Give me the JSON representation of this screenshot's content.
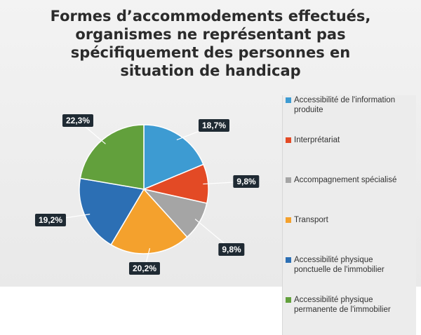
{
  "chart_data": {
    "type": "pie",
    "title_lines": [
      "Formes d’accommodements effectués,",
      "organismes ne représentant pas",
      "spécifiquement des personnes en",
      "situation de handicap"
    ],
    "slices": [
      {
        "label": "Accessibilité de l'information produite",
        "legend_lines": [
          "Accessibilité de l'information",
          "produite"
        ],
        "value": 18.7,
        "display": "18,7%",
        "color": "#3d9bd2"
      },
      {
        "label": "Interprétariat",
        "legend_lines": [
          "Interprétariat"
        ],
        "value": 9.8,
        "display": "9,8%",
        "color": "#e34a25"
      },
      {
        "label": "Accompagnement spécialisé",
        "legend_lines": [
          "Accompagnement spécialisé"
        ],
        "value": 9.8,
        "display": "9,8%",
        "color": "#a5a5a5"
      },
      {
        "label": "Transport",
        "legend_lines": [
          "Transport"
        ],
        "value": 20.2,
        "display": "20,2%",
        "color": "#f4a12d"
      },
      {
        "label": "Accessibilité physique ponctuelle de l'immobilier",
        "legend_lines": [
          "Accessibilité physique",
          "ponctuelle de l'immobilier"
        ],
        "value": 19.2,
        "display": "19,2%",
        "color": "#2c6fb4"
      },
      {
        "label": "Accessibilité physique permanente de l'immobilier",
        "legend_lines": [
          "Accessibilité physique",
          "permanente de l'immobilier"
        ],
        "value": 22.3,
        "display": "22,3%",
        "color": "#62a03c"
      }
    ],
    "legend_position": "right",
    "start": "top, clockwise"
  }
}
